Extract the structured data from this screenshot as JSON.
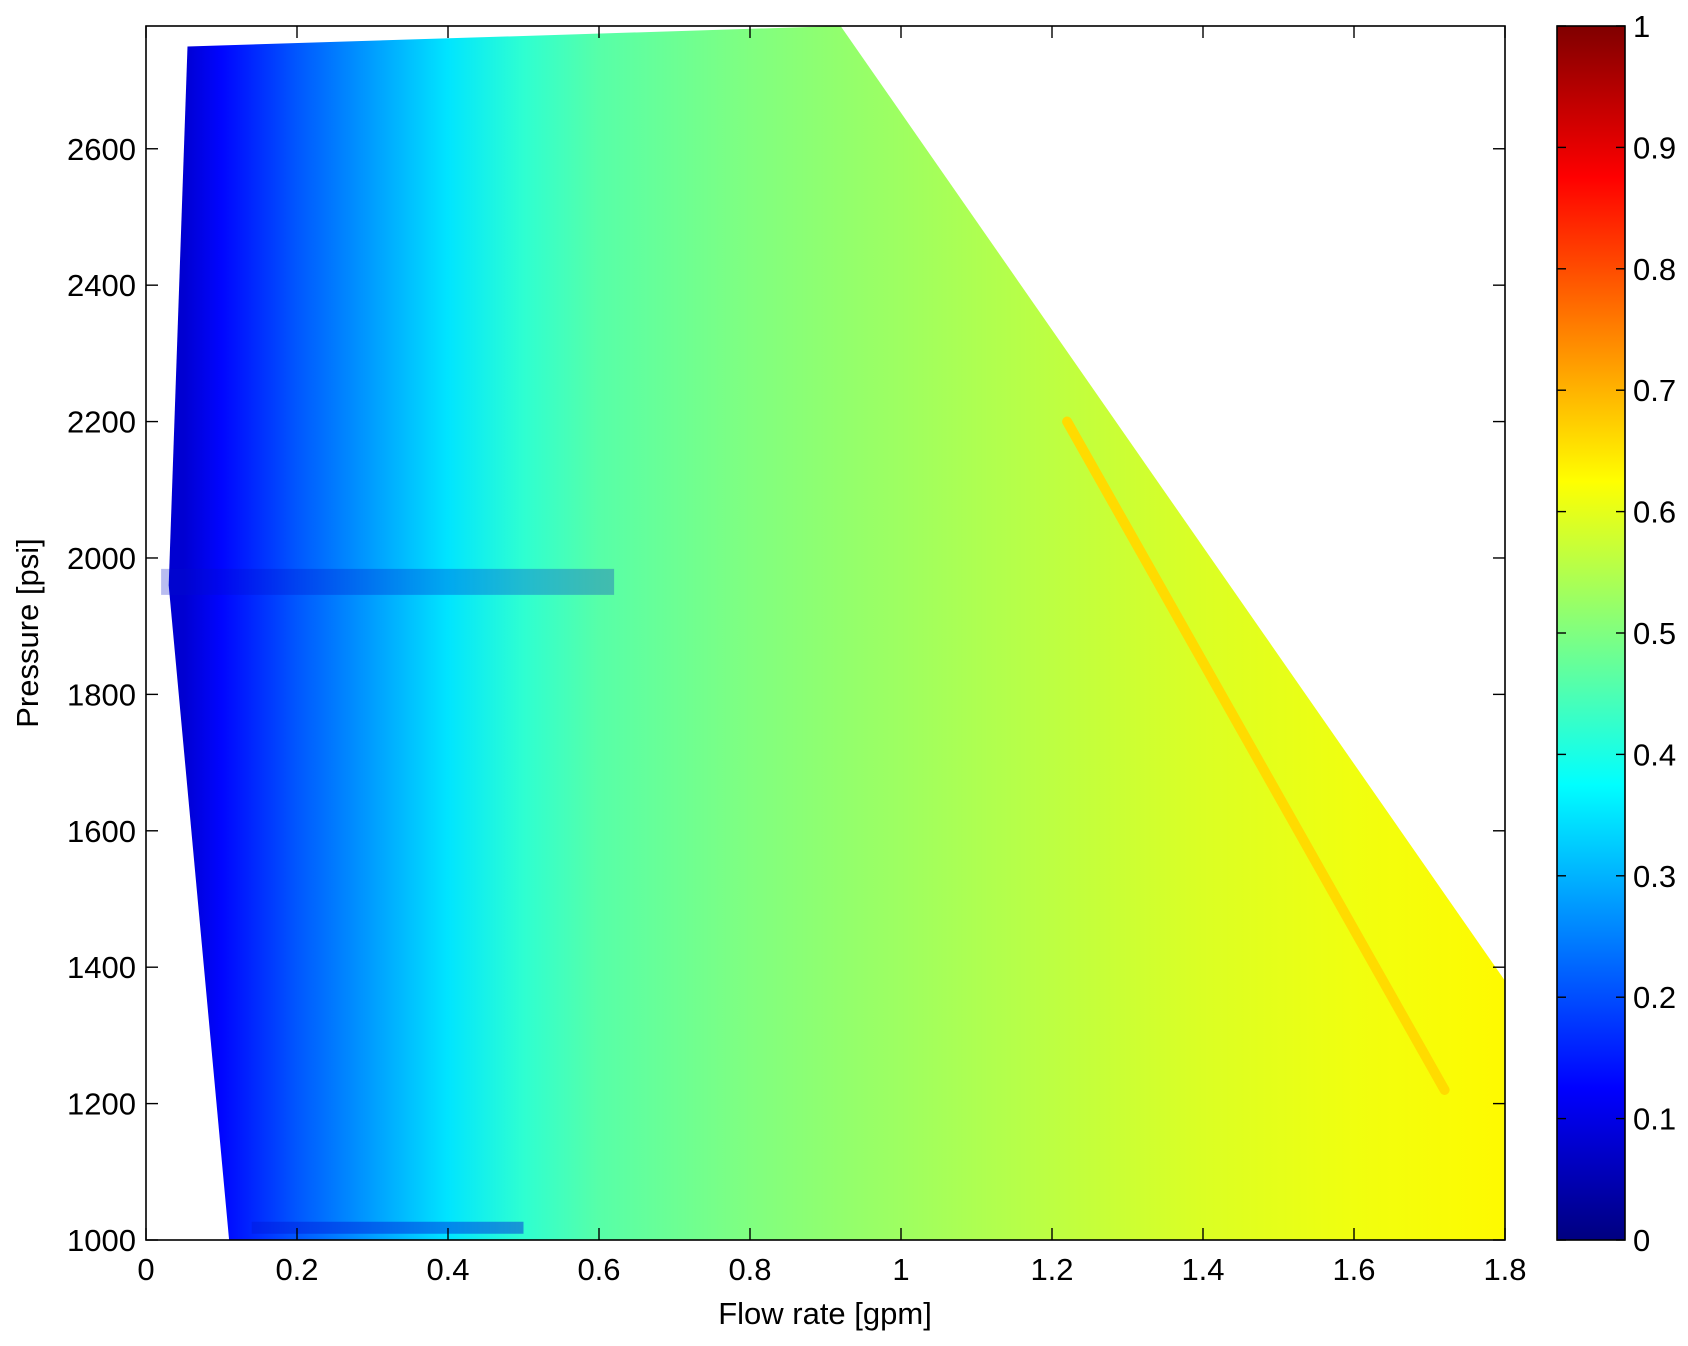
{
  "chart_data": {
    "type": "heatmap",
    "title": "",
    "xlabel": "Flow rate [gpm]",
    "ylabel": "Pressure [psi]",
    "xlim": [
      0,
      1.8
    ],
    "ylim": [
      1000,
      2780
    ],
    "x_ticks": [
      0,
      0.2,
      0.4,
      0.6,
      0.8,
      1,
      1.2,
      1.4,
      1.6,
      1.8
    ],
    "x_tick_labels": [
      "0",
      "0.2",
      "0.4",
      "0.6",
      "0.8",
      "1",
      "1.2",
      "1.4",
      "1.6",
      "1.8"
    ],
    "y_ticks": [
      1000,
      1200,
      1400,
      1600,
      1800,
      2000,
      2200,
      2400,
      2600
    ],
    "y_tick_labels": [
      "1000",
      "1200",
      "1400",
      "1600",
      "1800",
      "2000",
      "2200",
      "2400",
      "2600"
    ],
    "grid": false,
    "colormap": "jet",
    "colorbar": {
      "range": [
        0,
        1
      ],
      "ticks": [
        0,
        0.1,
        0.2,
        0.3,
        0.4,
        0.5,
        0.6,
        0.7,
        0.8,
        0.9,
        1
      ],
      "tick_labels": [
        "0",
        "0.1",
        "0.2",
        "0.3",
        "0.4",
        "0.5",
        "0.6",
        "0.7",
        "0.8",
        "0.9",
        "1"
      ]
    },
    "feasible_region": {
      "description_points": [
        {
          "flow": 0.11,
          "pressure": 1000
        },
        {
          "flow": 0.03,
          "pressure": 1960
        },
        {
          "flow": 0.055,
          "pressure": 2750
        },
        {
          "flow": 0.92,
          "pressure": 2780
        },
        {
          "flow": 1.8,
          "pressure": 1380
        },
        {
          "flow": 1.8,
          "pressure": 1000
        }
      ]
    },
    "value_profile_along_flow": {
      "flow": [
        0.05,
        0.1,
        0.15,
        0.2,
        0.3,
        0.4,
        0.5,
        0.6,
        0.8,
        1.0,
        1.2,
        1.4,
        1.6,
        1.8
      ],
      "value": [
        0.08,
        0.13,
        0.17,
        0.21,
        0.28,
        0.35,
        0.42,
        0.46,
        0.5,
        0.53,
        0.56,
        0.59,
        0.61,
        0.63
      ]
    },
    "ridge": {
      "start": {
        "flow": 1.22,
        "pressure": 2200
      },
      "end": {
        "flow": 1.72,
        "pressure": 1220
      },
      "value": 0.66
    }
  }
}
